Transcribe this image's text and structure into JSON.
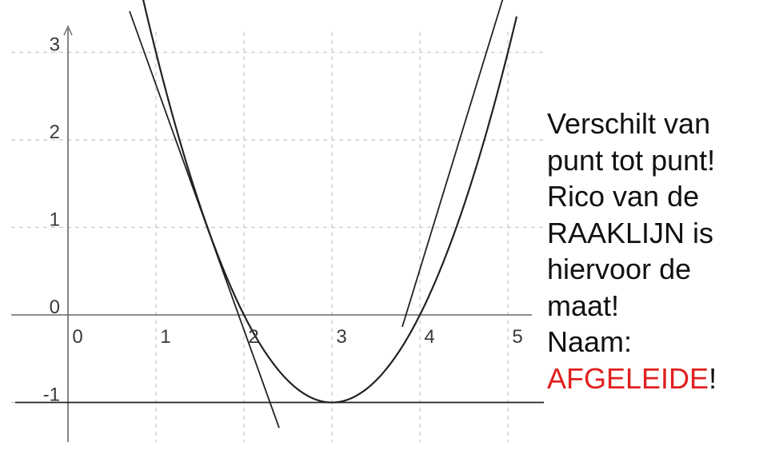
{
  "chart_data": {
    "type": "line",
    "x_ticks": [
      "0",
      "1",
      "2",
      "3",
      "4",
      "5"
    ],
    "y_ticks": [
      "-1",
      "0",
      "1",
      "2",
      "3"
    ],
    "xlim": [
      -0.05,
      6.35
    ],
    "ylim": [
      -1.45,
      3.3
    ],
    "grid": true,
    "grid_style": "dashed",
    "series": [
      {
        "kind": "curve",
        "formula": "y = (x - 3)^2 - 1",
        "x_range": [
          0.8,
          5.1
        ]
      },
      {
        "kind": "line",
        "formula": "y = -2.8x + 5.43",
        "x_range": [
          0.7,
          2.4
        ]
      },
      {
        "kind": "line",
        "formula": "y = 3.28x - 12.6",
        "x_range": [
          3.8,
          5.1
        ]
      },
      {
        "kind": "line",
        "formula": "y = -1",
        "x_range": [
          -0.6,
          6.3
        ]
      }
    ],
    "colors": {
      "axis": "#666666",
      "grid": "#c8c8c8",
      "curve": "#222222"
    }
  },
  "note": {
    "lines": [
      "Verschilt van",
      "punt tot punt!",
      "Rico van de",
      "RAAKLIJN is",
      "hiervoor de",
      "maat!",
      "Naam:"
    ],
    "highlight": "AFGELEIDE",
    "highlight_suffix": "!",
    "highlight_color": "#e0201e"
  }
}
